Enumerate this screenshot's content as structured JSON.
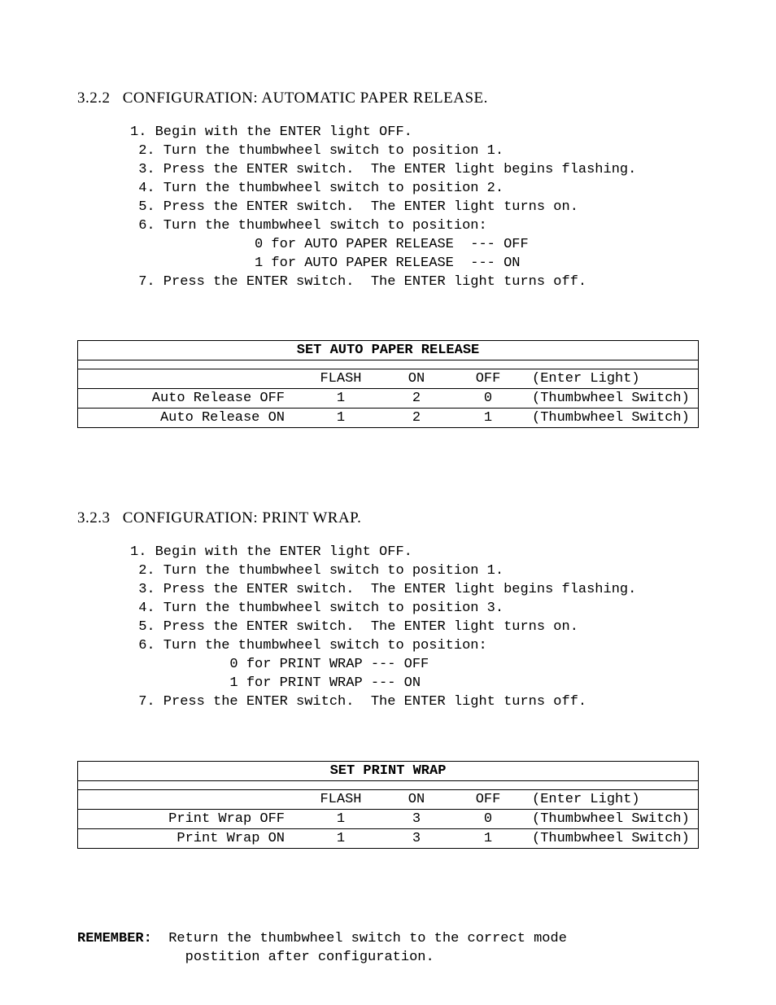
{
  "section_322": {
    "number": "3.2.2",
    "title": "CONFIGURATION:   AUTOMATIC PAPER RELEASE.",
    "steps": [
      "1. Begin with the ENTER light OFF.",
      " 2. Turn the thumbwheel switch to position 1.",
      " 3. Press the ENTER switch.  The ENTER light begins flashing.",
      " 4. Turn the thumbwheel switch to position 2.",
      " 5. Press the ENTER switch.  The ENTER light turns on.",
      " 6. Turn the thumbwheel switch to position:",
      "               0 for AUTO PAPER RELEASE  --- OFF",
      "               1 for AUTO PAPER RELEASE  --- ON",
      " 7. Press the ENTER switch.  The ENTER light turns off."
    ],
    "table": {
      "title": "SET AUTO PAPER RELEASE",
      "header": {
        "c1": "",
        "c2": "FLASH",
        "c3": "ON",
        "c4": "OFF",
        "c5": "(Enter Light)"
      },
      "rows": [
        {
          "c1": "Auto Release OFF",
          "c2": "1",
          "c3": "2",
          "c4": "0",
          "c5": "(Thumbwheel Switch)"
        },
        {
          "c1": "Auto Release ON",
          "c2": "1",
          "c3": "2",
          "c4": "1",
          "c5": "(Thumbwheel Switch)"
        }
      ]
    }
  },
  "section_323": {
    "number": "3.2.3",
    "title": "CONFIGURATION:   PRINT WRAP.",
    "steps": [
      "1. Begin with the ENTER light OFF.",
      " 2. Turn the thumbwheel switch to position 1.",
      " 3. Press the ENTER switch.  The ENTER light begins flashing.",
      " 4. Turn the thumbwheel switch to position 3.",
      " 5. Press the ENTER switch.  The ENTER light turns on.",
      " 6. Turn the thumbwheel switch to position:",
      "            0 for PRINT WRAP --- OFF",
      "            1 for PRINT WRAP --- ON",
      " 7. Press the ENTER switch.  The ENTER light turns off."
    ],
    "table": {
      "title": "SET PRINT WRAP",
      "header": {
        "c1": "",
        "c2": "FLASH",
        "c3": "ON",
        "c4": "OFF",
        "c5": "(Enter Light)"
      },
      "rows": [
        {
          "c1": "Print Wrap  OFF",
          "c2": "1",
          "c3": "3",
          "c4": "0",
          "c5": "(Thumbwheel Switch)"
        },
        {
          "c1": "Print Wrap  ON",
          "c2": "1",
          "c3": "3",
          "c4": "1",
          "c5": "(Thumbwheel Switch)"
        }
      ]
    }
  },
  "remember": {
    "label": "REMEMBER:",
    "line1": "  Return the thumbwheel switch to the correct mode",
    "line2": "             postition after configuration."
  }
}
